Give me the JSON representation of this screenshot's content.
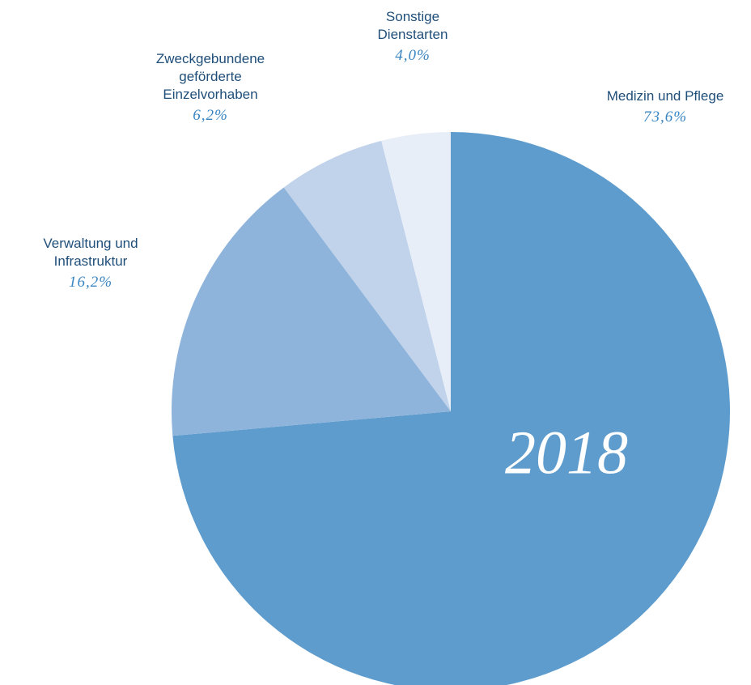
{
  "chart_data": {
    "type": "pie",
    "categories": [
      "Medizin und Pflege",
      "Verwaltung und Infrastruktur",
      "Zweckgebundene geförderte Einzelvorhaben",
      "Sonstige Dienstarten"
    ],
    "values": [
      73.6,
      16.2,
      6.2,
      4.0
    ],
    "value_labels": [
      "73,6%",
      "16,2%",
      "6,2%",
      "4,0%"
    ],
    "colors": [
      "#5e9ccd",
      "#8fb4db",
      "#c0d3eb",
      "#e8eef8"
    ],
    "annotation": "2018"
  }
}
